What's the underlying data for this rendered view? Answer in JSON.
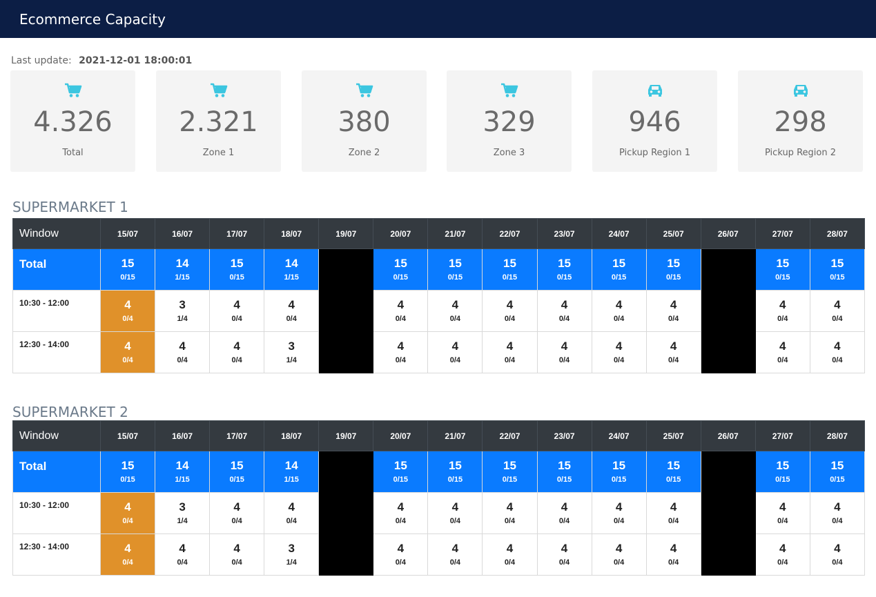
{
  "header": {
    "title": "Ecommerce Capacity"
  },
  "last_update": {
    "label": "Last update:",
    "value": "2021-12-01 18:00:01"
  },
  "cards": [
    {
      "icon": "cart-icon",
      "value": "4.326",
      "label": "Total"
    },
    {
      "icon": "cart-icon",
      "value": "2.321",
      "label": "Zone 1"
    },
    {
      "icon": "cart-icon",
      "value": "380",
      "label": "Zone 2"
    },
    {
      "icon": "cart-icon",
      "value": "329",
      "label": "Zone 3"
    },
    {
      "icon": "car-icon",
      "value": "946",
      "label": "Pickup Region 1"
    },
    {
      "icon": "car-icon",
      "value": "298",
      "label": "Pickup Region 2"
    }
  ],
  "colors": {
    "topbar": "#0c1e45",
    "total_row": "#0a7bff",
    "highlight": "#e0912a",
    "closed": "#000000",
    "icon": "#3cc6e0"
  },
  "tables": [
    {
      "title": "SUPERMARKET 1",
      "window_label": "Window",
      "dates": [
        "15/07",
        "16/07",
        "17/07",
        "18/07",
        "19/07",
        "20/07",
        "21/07",
        "22/07",
        "23/07",
        "24/07",
        "25/07",
        "26/07",
        "27/07",
        "28/07"
      ],
      "rows": [
        {
          "label": "Total",
          "type": "total",
          "cells": [
            {
              "big": "15",
              "small": "0/15"
            },
            {
              "big": "14",
              "small": "1/15"
            },
            {
              "big": "15",
              "small": "0/15"
            },
            {
              "big": "14",
              "small": "1/15"
            },
            {
              "closed": true
            },
            {
              "big": "15",
              "small": "0/15"
            },
            {
              "big": "15",
              "small": "0/15"
            },
            {
              "big": "15",
              "small": "0/15"
            },
            {
              "big": "15",
              "small": "0/15"
            },
            {
              "big": "15",
              "small": "0/15"
            },
            {
              "big": "15",
              "small": "0/15"
            },
            {
              "closed": true
            },
            {
              "big": "15",
              "small": "0/15"
            },
            {
              "big": "15",
              "small": "0/15"
            }
          ]
        },
        {
          "label": "10:30 - 12:00",
          "type": "slot",
          "cells": [
            {
              "big": "4",
              "small": "0/4",
              "hl": true
            },
            {
              "big": "3",
              "small": "1/4"
            },
            {
              "big": "4",
              "small": "0/4"
            },
            {
              "big": "4",
              "small": "0/4"
            },
            {
              "closed": true
            },
            {
              "big": "4",
              "small": "0/4"
            },
            {
              "big": "4",
              "small": "0/4"
            },
            {
              "big": "4",
              "small": "0/4"
            },
            {
              "big": "4",
              "small": "0/4"
            },
            {
              "big": "4",
              "small": "0/4"
            },
            {
              "big": "4",
              "small": "0/4"
            },
            {
              "closed": true
            },
            {
              "big": "4",
              "small": "0/4"
            },
            {
              "big": "4",
              "small": "0/4"
            }
          ]
        },
        {
          "label": "12:30 - 14:00",
          "type": "slot",
          "cells": [
            {
              "big": "4",
              "small": "0/4",
              "hl": true
            },
            {
              "big": "4",
              "small": "0/4"
            },
            {
              "big": "4",
              "small": "0/4"
            },
            {
              "big": "3",
              "small": "1/4"
            },
            {
              "closed": true
            },
            {
              "big": "4",
              "small": "0/4"
            },
            {
              "big": "4",
              "small": "0/4"
            },
            {
              "big": "4",
              "small": "0/4"
            },
            {
              "big": "4",
              "small": "0/4"
            },
            {
              "big": "4",
              "small": "0/4"
            },
            {
              "big": "4",
              "small": "0/4"
            },
            {
              "closed": true
            },
            {
              "big": "4",
              "small": "0/4"
            },
            {
              "big": "4",
              "small": "0/4"
            }
          ]
        }
      ]
    },
    {
      "title": "SUPERMARKET 2",
      "window_label": "Window",
      "dates": [
        "15/07",
        "16/07",
        "17/07",
        "18/07",
        "19/07",
        "20/07",
        "21/07",
        "22/07",
        "23/07",
        "24/07",
        "25/07",
        "26/07",
        "27/07",
        "28/07"
      ],
      "rows": [
        {
          "label": "Total",
          "type": "total",
          "cells": [
            {
              "big": "15",
              "small": "0/15"
            },
            {
              "big": "14",
              "small": "1/15"
            },
            {
              "big": "15",
              "small": "0/15"
            },
            {
              "big": "14",
              "small": "1/15"
            },
            {
              "closed": true
            },
            {
              "big": "15",
              "small": "0/15"
            },
            {
              "big": "15",
              "small": "0/15"
            },
            {
              "big": "15",
              "small": "0/15"
            },
            {
              "big": "15",
              "small": "0/15"
            },
            {
              "big": "15",
              "small": "0/15"
            },
            {
              "big": "15",
              "small": "0/15"
            },
            {
              "closed": true
            },
            {
              "big": "15",
              "small": "0/15"
            },
            {
              "big": "15",
              "small": "0/15"
            }
          ]
        },
        {
          "label": "10:30 - 12:00",
          "type": "slot",
          "cells": [
            {
              "big": "4",
              "small": "0/4",
              "hl": true
            },
            {
              "big": "3",
              "small": "1/4"
            },
            {
              "big": "4",
              "small": "0/4"
            },
            {
              "big": "4",
              "small": "0/4"
            },
            {
              "closed": true
            },
            {
              "big": "4",
              "small": "0/4"
            },
            {
              "big": "4",
              "small": "0/4"
            },
            {
              "big": "4",
              "small": "0/4"
            },
            {
              "big": "4",
              "small": "0/4"
            },
            {
              "big": "4",
              "small": "0/4"
            },
            {
              "big": "4",
              "small": "0/4"
            },
            {
              "closed": true
            },
            {
              "big": "4",
              "small": "0/4"
            },
            {
              "big": "4",
              "small": "0/4"
            }
          ]
        },
        {
          "label": "12:30 - 14:00",
          "type": "slot",
          "cells": [
            {
              "big": "4",
              "small": "0/4",
              "hl": true
            },
            {
              "big": "4",
              "small": "0/4"
            },
            {
              "big": "4",
              "small": "0/4"
            },
            {
              "big": "3",
              "small": "1/4"
            },
            {
              "closed": true
            },
            {
              "big": "4",
              "small": "0/4"
            },
            {
              "big": "4",
              "small": "0/4"
            },
            {
              "big": "4",
              "small": "0/4"
            },
            {
              "big": "4",
              "small": "0/4"
            },
            {
              "big": "4",
              "small": "0/4"
            },
            {
              "big": "4",
              "small": "0/4"
            },
            {
              "closed": true
            },
            {
              "big": "4",
              "small": "0/4"
            },
            {
              "big": "4",
              "small": "0/4"
            }
          ]
        }
      ]
    }
  ]
}
